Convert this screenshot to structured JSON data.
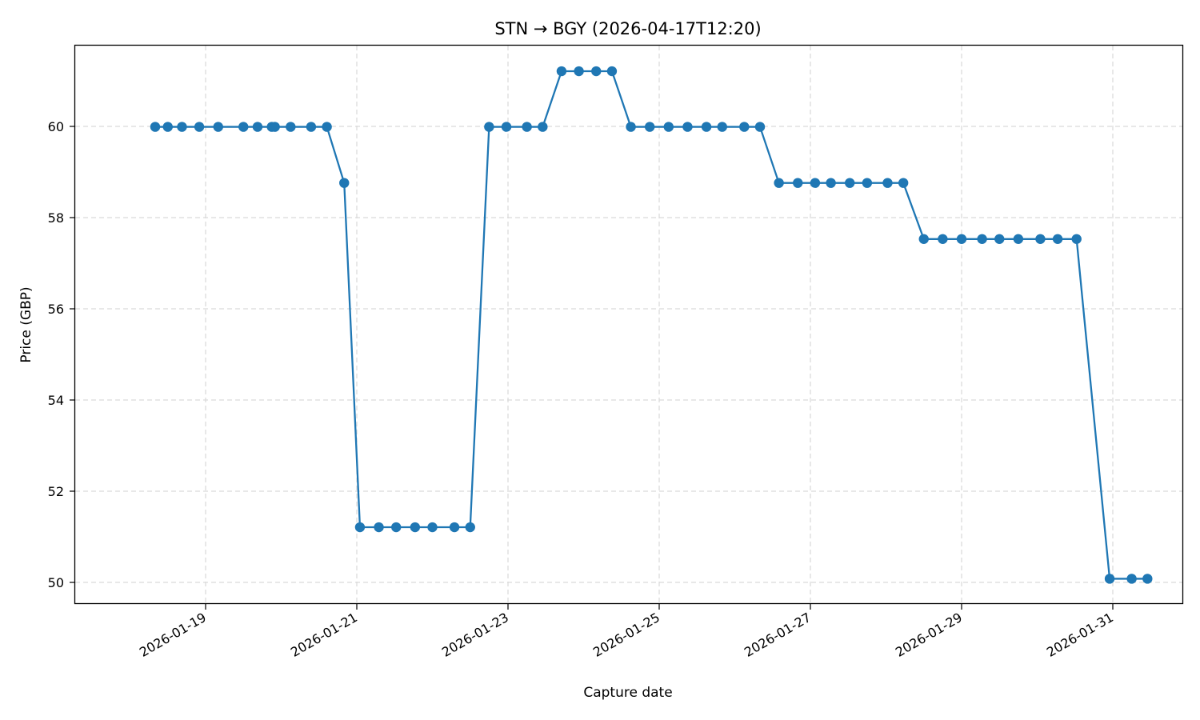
{
  "chart_data": {
    "type": "line",
    "title": "STN → BGY (2026-04-17T12:20)",
    "xlabel": "Capture date",
    "ylabel": "Price (GBP)",
    "ylim": [
      49.55,
      61.8
    ],
    "x_tick_labels": [
      "2026-01-19",
      "2026-01-21",
      "2026-01-23",
      "2026-01-25",
      "2026-01-27",
      "2026-01-29",
      "2026-01-31"
    ],
    "y_tick_labels": [
      "50",
      "52",
      "54",
      "56",
      "58",
      "60"
    ],
    "y_ticks": [
      50,
      52,
      54,
      56,
      58,
      60
    ],
    "grid": true,
    "legend": null,
    "series": [
      {
        "name": "price",
        "color": "#1f77b4",
        "marker": "circle",
        "points": [
          {
            "x": "2026-01-18T08:00",
            "y": 59.99
          },
          {
            "x": "2026-01-18T12:00",
            "y": 59.99
          },
          {
            "x": "2026-01-18T16:30",
            "y": 59.99
          },
          {
            "x": "2026-01-18T22:00",
            "y": 59.99
          },
          {
            "x": "2026-01-19T04:00",
            "y": 59.99
          },
          {
            "x": "2026-01-19T12:00",
            "y": 59.99
          },
          {
            "x": "2026-01-19T16:30",
            "y": 59.99
          },
          {
            "x": "2026-01-19T21:00",
            "y": 59.99
          },
          {
            "x": "2026-01-19T22:00",
            "y": 59.99
          },
          {
            "x": "2026-01-20T03:00",
            "y": 59.99
          },
          {
            "x": "2026-01-20T09:30",
            "y": 59.99
          },
          {
            "x": "2026-01-20T14:30",
            "y": 59.99
          },
          {
            "x": "2026-01-20T20:00",
            "y": 58.76
          },
          {
            "x": "2026-01-21T01:00",
            "y": 51.21
          },
          {
            "x": "2026-01-21T07:00",
            "y": 51.21
          },
          {
            "x": "2026-01-21T12:30",
            "y": 51.21
          },
          {
            "x": "2026-01-21T18:30",
            "y": 51.21
          },
          {
            "x": "2026-01-22T00:00",
            "y": 51.21
          },
          {
            "x": "2026-01-22T07:00",
            "y": 51.21
          },
          {
            "x": "2026-01-22T12:00",
            "y": 51.21
          },
          {
            "x": "2026-01-22T18:00",
            "y": 59.99
          },
          {
            "x": "2026-01-22T23:30",
            "y": 59.99
          },
          {
            "x": "2026-01-23T06:00",
            "y": 59.99
          },
          {
            "x": "2026-01-23T11:00",
            "y": 59.99
          },
          {
            "x": "2026-01-23T17:00",
            "y": 61.21
          },
          {
            "x": "2026-01-23T22:30",
            "y": 61.21
          },
          {
            "x": "2026-01-24T04:00",
            "y": 61.21
          },
          {
            "x": "2026-01-24T09:00",
            "y": 61.21
          },
          {
            "x": "2026-01-24T15:00",
            "y": 59.99
          },
          {
            "x": "2026-01-24T21:00",
            "y": 59.99
          },
          {
            "x": "2026-01-25T03:00",
            "y": 59.99
          },
          {
            "x": "2026-01-25T09:00",
            "y": 59.99
          },
          {
            "x": "2026-01-25T15:00",
            "y": 59.99
          },
          {
            "x": "2026-01-25T20:00",
            "y": 59.99
          },
          {
            "x": "2026-01-26T03:00",
            "y": 59.99
          },
          {
            "x": "2026-01-26T08:00",
            "y": 59.99
          },
          {
            "x": "2026-01-26T14:00",
            "y": 58.76
          },
          {
            "x": "2026-01-26T20:00",
            "y": 58.76
          },
          {
            "x": "2026-01-27T01:30",
            "y": 58.76
          },
          {
            "x": "2026-01-27T06:30",
            "y": 58.76
          },
          {
            "x": "2026-01-27T12:30",
            "y": 58.76
          },
          {
            "x": "2026-01-27T18:00",
            "y": 58.76
          },
          {
            "x": "2026-01-28T00:30",
            "y": 58.76
          },
          {
            "x": "2026-01-28T05:30",
            "y": 58.76
          },
          {
            "x": "2026-01-28T12:00",
            "y": 57.53
          },
          {
            "x": "2026-01-28T18:00",
            "y": 57.53
          },
          {
            "x": "2026-01-29T00:00",
            "y": 57.53
          },
          {
            "x": "2026-01-29T06:30",
            "y": 57.53
          },
          {
            "x": "2026-01-29T12:00",
            "y": 57.53
          },
          {
            "x": "2026-01-29T18:00",
            "y": 57.53
          },
          {
            "x": "2026-01-30T01:00",
            "y": 57.53
          },
          {
            "x": "2026-01-30T06:30",
            "y": 57.53
          },
          {
            "x": "2026-01-30T12:30",
            "y": 57.53
          },
          {
            "x": "2026-01-30T23:00",
            "y": 50.08
          },
          {
            "x": "2026-01-31T06:00",
            "y": 50.08
          },
          {
            "x": "2026-01-31T11:00",
            "y": 50.08
          }
        ]
      }
    ]
  }
}
